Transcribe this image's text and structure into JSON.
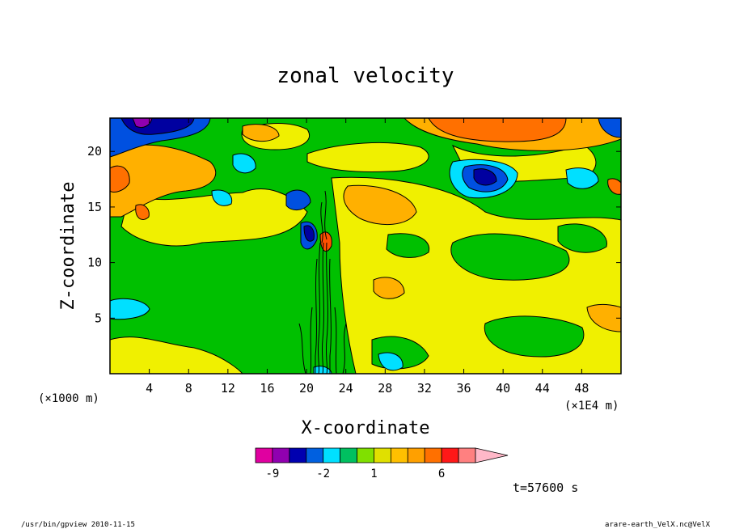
{
  "chart_data": {
    "type": "heatmap",
    "title": "zonal velocity",
    "xlabel": "X-coordinate",
    "ylabel": "Z-coordinate",
    "x_unit_left": "(×1000 m)",
    "x_unit_right": "(×1E4 m)",
    "xlim": [
      0,
      52
    ],
    "ylim": [
      0,
      23
    ],
    "x_ticks": [
      4,
      8,
      12,
      16,
      20,
      24,
      28,
      32,
      36,
      40,
      44,
      48
    ],
    "y_ticks": [
      5,
      10,
      15,
      20
    ],
    "colorbar": {
      "levels": [
        "-12",
        "-9",
        "-6",
        "-4",
        "-2",
        "-1",
        "0",
        "1",
        "2",
        "3",
        "4",
        "6",
        "9",
        "12"
      ],
      "colors": [
        "#e000a0",
        "#9000b0",
        "#0000b0",
        "#0060e0",
        "#00e0ff",
        "#00c060",
        "#80e000",
        "#e0e000",
        "#ffc000",
        "#ffa000",
        "#ff7000",
        "#ff1818",
        "#ff8080",
        "#ffb8c8"
      ],
      "labels": [
        "-9",
        "-2",
        "1",
        "6"
      ]
    },
    "grid": false
  },
  "time_label": "t=57600 s",
  "footer": {
    "left": "/usr/bin/gpview  2010-11-15",
    "right": "arare-earth_VelX.nc@VelX"
  }
}
